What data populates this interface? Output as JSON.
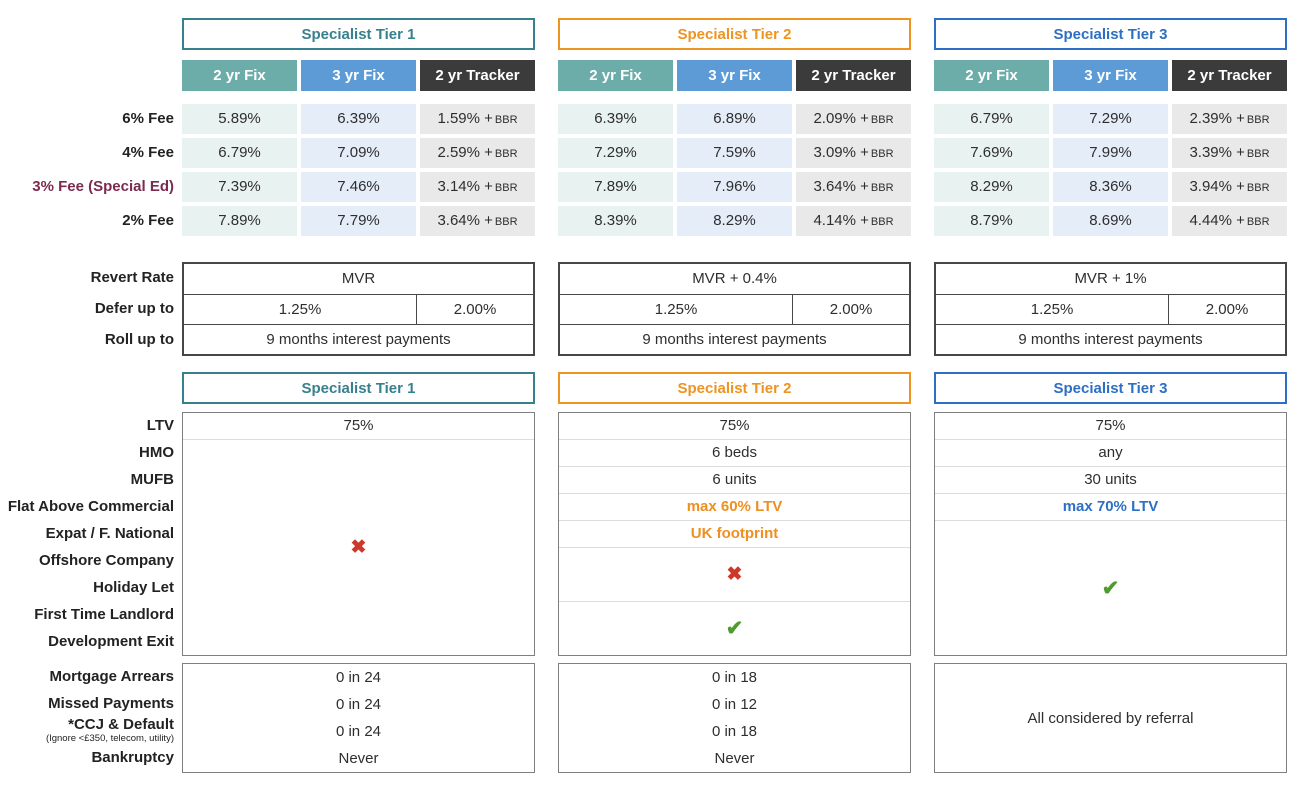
{
  "colors": {
    "tier1_accent": "#37808D",
    "tier2_accent": "#EE9421",
    "tier3_accent": "#2D6FC4",
    "col_2yr_fix_bg": "#6CACA9",
    "col_3yr_fix_bg": "#5C9BD6",
    "col_tracker_bg": "#3B3B3B",
    "cell_2yr_fix_bg": "#E8F2F1",
    "cell_3yr_fix_bg": "#E4EDF8",
    "cell_tracker_bg": "#E9E9E9",
    "special_fee_label": "#7C2B50",
    "cross_red": "#CE382B",
    "check_green": "#4F9C2E",
    "orange_text": "#EE8F20",
    "blue_text": "#2D6FC4"
  },
  "icons": {
    "cross": "✖",
    "check": "✔"
  },
  "labels": {
    "fee6": "6% Fee",
    "fee4": "4% Fee",
    "fee3": "3% Fee (Special Ed)",
    "fee2": "2% Fee",
    "revert": "Revert Rate",
    "defer": "Defer up to",
    "rollup": "Roll up to",
    "ltv": "LTV",
    "hmo": "HMO",
    "mufb": "MUFB",
    "flat": "Flat Above Commercial",
    "expat": "Expat / F. National",
    "offshore": "Offshore Company",
    "holiday": "Holiday Let",
    "ftl": "First Time Landlord",
    "devexit": "Development Exit",
    "arrears": "Mortgage Arrears",
    "missed": "Missed Payments",
    "ccj": "*CCJ & Default",
    "ccj_note": "(Ignore <£350, telecom, utility)",
    "bankruptcy": "Bankruptcy"
  },
  "tiers": [
    {
      "title": "Specialist Tier 1",
      "columns": [
        "2 yr Fix",
        "3 yr Fix",
        "2 yr Tracker"
      ],
      "rates": [
        {
          "fix2": "5.89%",
          "fix3": "6.39%",
          "tracker": "1.59% +",
          "tracker_unit": "BBR"
        },
        {
          "fix2": "6.79%",
          "fix3": "7.09%",
          "tracker": "2.59% +",
          "tracker_unit": "BBR"
        },
        {
          "fix2": "7.39%",
          "fix3": "7.46%",
          "tracker": "3.14% +",
          "tracker_unit": "BBR"
        },
        {
          "fix2": "7.89%",
          "fix3": "7.79%",
          "tracker": "3.64% +",
          "tracker_unit": "BBR"
        }
      ],
      "revert": "MVR",
      "defer_left": "1.25%",
      "defer_right": "2.00%",
      "roll_up": "9 months interest payments",
      "criteria": {
        "ltv": "75%"
      },
      "adverse": {
        "arrears": "0 in 24",
        "missed": "0 in 24",
        "ccj": "0 in 24",
        "bankruptcy": "Never"
      }
    },
    {
      "title": "Specialist Tier 2",
      "columns": [
        "2 yr Fix",
        "3 yr Fix",
        "2 yr Tracker"
      ],
      "rates": [
        {
          "fix2": "6.39%",
          "fix3": "6.89%",
          "tracker": "2.09% +",
          "tracker_unit": "BBR"
        },
        {
          "fix2": "7.29%",
          "fix3": "7.59%",
          "tracker": "3.09% +",
          "tracker_unit": "BBR"
        },
        {
          "fix2": "7.89%",
          "fix3": "7.96%",
          "tracker": "3.64% +",
          "tracker_unit": "BBR"
        },
        {
          "fix2": "8.39%",
          "fix3": "8.29%",
          "tracker": "4.14% +",
          "tracker_unit": "BBR"
        }
      ],
      "revert": "MVR + 0.4%",
      "defer_left": "1.25%",
      "defer_right": "2.00%",
      "roll_up": "9 months interest payments",
      "criteria": {
        "ltv": "75%",
        "hmo": "6 beds",
        "mufb": "6 units",
        "flat": "max 60% LTV",
        "expat": "UK footprint"
      },
      "adverse": {
        "arrears": "0 in 18",
        "missed": "0 in 12",
        "ccj": "0 in 18",
        "bankruptcy": "Never"
      }
    },
    {
      "title": "Specialist Tier 3",
      "columns": [
        "2 yr Fix",
        "3 yr Fix",
        "2 yr Tracker"
      ],
      "rates": [
        {
          "fix2": "6.79%",
          "fix3": "7.29%",
          "tracker": "2.39% +",
          "tracker_unit": "BBR"
        },
        {
          "fix2": "7.69%",
          "fix3": "7.99%",
          "tracker": "3.39% +",
          "tracker_unit": "BBR"
        },
        {
          "fix2": "8.29%",
          "fix3": "8.36%",
          "tracker": "3.94% +",
          "tracker_unit": "BBR"
        },
        {
          "fix2": "8.79%",
          "fix3": "8.69%",
          "tracker": "4.44% +",
          "tracker_unit": "BBR"
        }
      ],
      "revert": "MVR + 1%",
      "defer_left": "1.25%",
      "defer_right": "2.00%",
      "roll_up": "9 months interest payments",
      "criteria": {
        "ltv": "75%",
        "hmo": "any",
        "mufb": "30 units",
        "flat": "max 70% LTV"
      },
      "adverse_note": "All considered by referral"
    }
  ]
}
